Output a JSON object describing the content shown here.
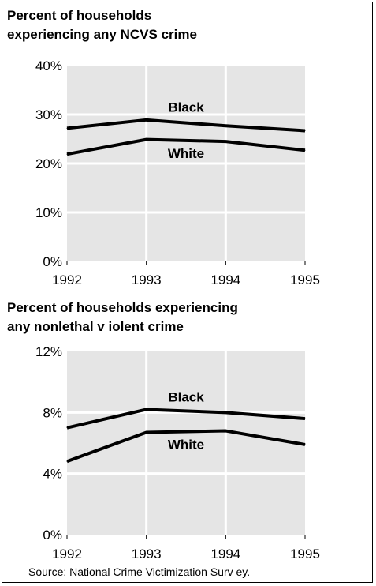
{
  "chart_data": [
    {
      "type": "line",
      "title_lines": [
        "Percent of households",
        "experiencing any NCVS crime"
      ],
      "x": [
        "1992",
        "1993",
        "1994",
        "1995"
      ],
      "ylim": [
        0,
        40
      ],
      "yticks": [
        "0%",
        "10%",
        "20%",
        "30%",
        "40%"
      ],
      "ytick_values": [
        0,
        10,
        20,
        30,
        40
      ],
      "grid": true,
      "series": [
        {
          "name": "Black",
          "values": [
            27.2,
            28.9,
            27.7,
            26.7
          ]
        },
        {
          "name": "White",
          "values": [
            21.9,
            24.9,
            24.5,
            22.7
          ]
        }
      ]
    },
    {
      "type": "line",
      "title_lines": [
        "Percent of households experiencing",
        "any nonlethal v iolent crime"
      ],
      "x": [
        "1992",
        "1993",
        "1994",
        "1995"
      ],
      "ylim": [
        0,
        12
      ],
      "yticks": [
        "0%",
        "4%",
        "8%",
        "12%"
      ],
      "ytick_values": [
        0,
        4,
        8,
        12
      ],
      "grid": true,
      "series": [
        {
          "name": "Black",
          "values": [
            7.0,
            8.2,
            8.0,
            7.6
          ]
        },
        {
          "name": "White",
          "values": [
            4.8,
            6.7,
            6.8,
            5.9
          ]
        }
      ]
    }
  ],
  "source": "Source:  National Crime Victimization Surv ey.",
  "colors": {
    "plot_background": "#e5e5e5",
    "gridline": "#ffffff",
    "line": "#000000"
  }
}
